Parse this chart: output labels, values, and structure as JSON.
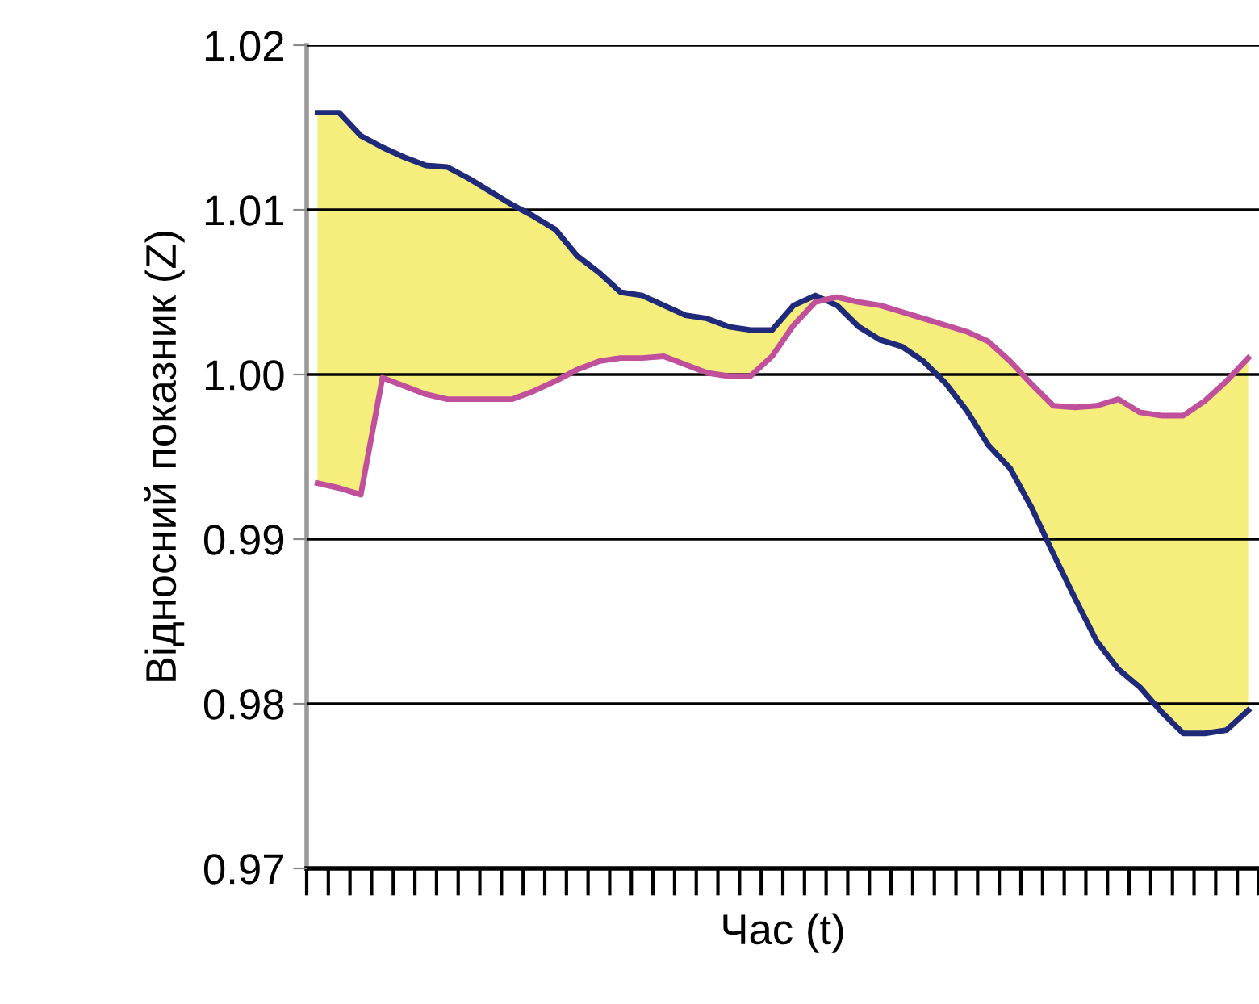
{
  "chart_data": {
    "type": "line",
    "xlabel": "Час (t)",
    "ylabel": "Відносний показник (Z)",
    "categories": [
      null,
      null,
      null,
      null,
      null,
      null,
      null,
      null,
      null,
      null,
      null,
      null,
      null,
      null,
      null,
      null,
      null,
      null,
      null,
      null,
      null,
      null,
      null,
      null,
      null,
      null,
      null,
      null,
      null,
      null,
      null,
      null,
      null,
      null,
      null,
      null,
      null,
      null,
      null,
      null,
      null,
      null,
      null,
      null
    ],
    "ylim": [
      0.97,
      1.02
    ],
    "yticks": [
      {
        "value": 0.97,
        "label": "0.97"
      },
      {
        "value": 0.98,
        "label": "0.98"
      },
      {
        "value": 0.99,
        "label": "0.99"
      },
      {
        "value": 1.0,
        "label": "1.00"
      },
      {
        "value": 1.01,
        "label": "1.01"
      },
      {
        "value": 1.02,
        "label": "1.02"
      }
    ],
    "grid": "y",
    "tick_labels": "y",
    "marker": "none",
    "line_style": "solid",
    "series": [
      {
        "color": "#1f2a7a",
        "values": [
          1.0159,
          1.0159,
          1.0145,
          1.0138,
          1.0132,
          1.0127,
          1.0126,
          1.0119,
          1.0111,
          1.0103,
          1.0096,
          1.0088,
          1.0072,
          1.0062,
          1.005,
          1.0048,
          1.0042,
          1.0036,
          1.0034,
          1.0029,
          1.0027,
          1.0027,
          1.0042,
          1.0048,
          1.0042,
          1.0029,
          1.0021,
          1.0017,
          1.0008,
          0.9995,
          0.9978,
          0.9957,
          0.9943,
          0.9919,
          0.9891,
          0.9864,
          0.9838,
          0.9821,
          0.981,
          0.9795,
          0.9782,
          0.9782,
          0.9784,
          0.9796
        ],
        "lower": [
          0.9934,
          0.9931,
          0.9927,
          0.9998,
          0.9993,
          0.9988,
          0.9985,
          0.9985,
          0.9985,
          0.9985,
          0.999,
          0.9996,
          1.0003,
          1.0008,
          1.001,
          1.001,
          1.0011,
          1.0006,
          1.0001,
          0.9999,
          0.9999,
          1.0011,
          1.003,
          1.0044,
          1.0042,
          1.0029,
          1.0021,
          1.0017,
          1.0008,
          0.9995,
          0.9978,
          0.9957,
          0.9943,
          0.9919,
          0.9891,
          0.9864,
          0.9838,
          0.9821,
          0.981,
          0.9795,
          0.9782,
          0.9782,
          0.9784,
          0.9796
        ],
        "upper": [
          1.0159,
          1.0159,
          1.0145,
          1.0138,
          1.0132,
          1.0127,
          1.0126,
          1.0119,
          1.0111,
          1.0103,
          1.0096,
          1.0088,
          1.0072,
          1.0062,
          1.005,
          1.0048,
          1.0042,
          1.0036,
          1.0034,
          1.0029,
          1.0027,
          1.0027,
          1.0042,
          1.0048,
          1.0047,
          1.0044,
          1.0042,
          1.0038,
          1.0034,
          1.003,
          1.0026,
          1.002,
          1.0008,
          0.9994,
          0.9981,
          0.998,
          0.9981,
          0.9985,
          0.9977,
          0.9975,
          0.9975,
          0.9984,
          0.9996,
          1.001
        ]
      },
      {
        "color": "#c0509c",
        "values": [
          0.9934,
          0.9931,
          0.9927,
          0.9998,
          0.9993,
          0.9988,
          0.9985,
          0.9985,
          0.9985,
          0.9985,
          0.999,
          0.9996,
          1.0003,
          1.0008,
          1.001,
          1.001,
          1.0011,
          1.0006,
          1.0001,
          0.9999,
          0.9999,
          1.0011,
          1.003,
          1.0044,
          1.0047,
          1.0044,
          1.0042,
          1.0038,
          1.0034,
          1.003,
          1.0026,
          1.002,
          1.0008,
          0.9994,
          0.9981,
          0.998,
          0.9981,
          0.9985,
          0.9977,
          0.9975,
          0.9975,
          0.9984,
          0.9996,
          1.001
        ]
      }
    ]
  }
}
